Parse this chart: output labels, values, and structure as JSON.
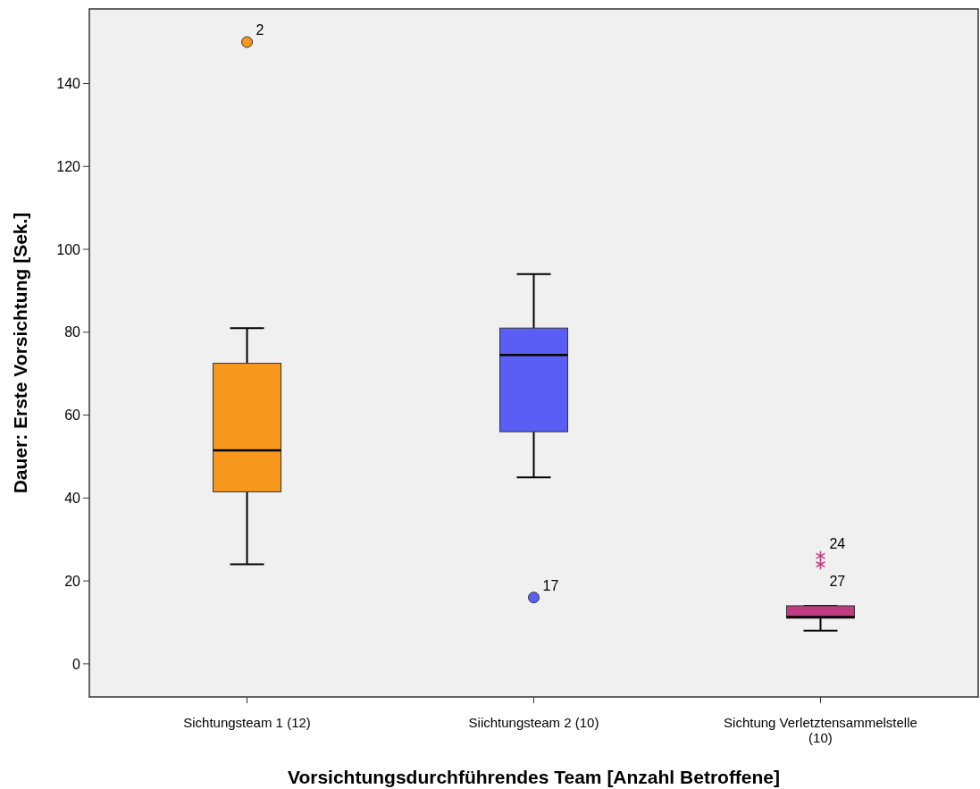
{
  "chart_data": {
    "type": "box",
    "xlabel": "Vorsichtungsdurchführendes Team [Anzahl Betroffene]",
    "ylabel": "Dauer: Erste Vorsichtung [Sek.]",
    "categories": [
      "Sichtungsteam 1 (12)",
      "Siichtungsteam 2 (10)",
      "Sichtung Verletztensammelstelle (10)"
    ],
    "colors": [
      "#f7981d",
      "#5a5ef5",
      "#bf3c82"
    ],
    "boxes": [
      {
        "low": 24,
        "q1": 41.5,
        "median": 51.5,
        "q3": 72.5,
        "high": 81
      },
      {
        "low": 45,
        "q1": 56,
        "median": 74.5,
        "q3": 81,
        "high": 94
      },
      {
        "low": 8,
        "q1": 11,
        "median": 11.3,
        "q3": 14,
        "high": 14
      }
    ],
    "series": [
      {
        "type": "scatter",
        "marker": "circle",
        "x": [
          "Sichtungsteam 1 (12)",
          "Siichtungsteam 2 (10)"
        ],
        "values": [
          150,
          16
        ],
        "colors": [
          "#f7981d",
          "#5a5ef5"
        ]
      },
      {
        "type": "scatter",
        "marker": "cross",
        "x": [
          "Sichtung Verletztensammelstelle (10)",
          "Sichtung Verletztensammelstelle (10)"
        ],
        "values": [
          26,
          24
        ],
        "colors": [
          "#bf3c82",
          "#bf3c82"
        ]
      }
    ],
    "annotations": [
      "2",
      "17",
      "24",
      "27"
    ],
    "ylim": [
      -8,
      158
    ],
    "yticks": [
      0,
      20,
      40,
      60,
      80,
      100,
      120,
      140
    ],
    "grid": false
  }
}
